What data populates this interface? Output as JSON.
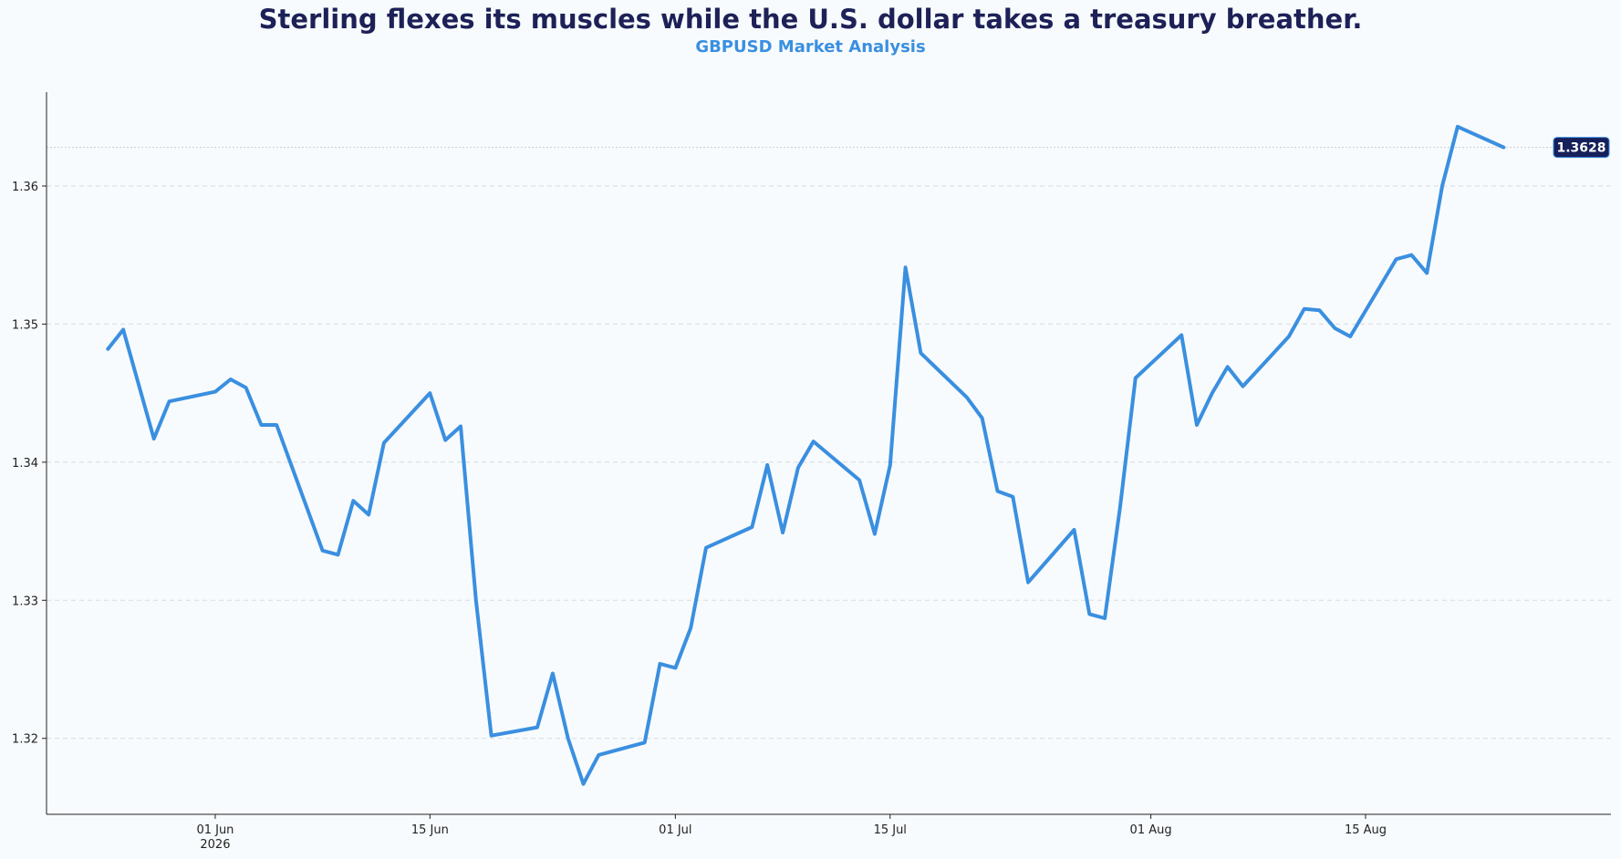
{
  "chart_data": {
    "type": "line",
    "title": "Sterling flexes its muscles while the U.S. dollar takes a treasury breather.",
    "subtitle": "GBPUSD Market Analysis",
    "xlabel": "",
    "ylabel": "",
    "ylim": [
      1.3145,
      1.3668
    ],
    "y_ticks": [
      1.32,
      1.33,
      1.34,
      1.35,
      1.36
    ],
    "y_tick_labels": [
      "1.32",
      "1.33",
      "1.34",
      "1.35",
      "1.36"
    ],
    "x_range": [
      "2026-05-21",
      "2026-08-31"
    ],
    "x_ticks": [
      {
        "date": "2026-06-01",
        "label": "01 Jun",
        "sublabel": "2026"
      },
      {
        "date": "2026-06-15",
        "label": "15 Jun",
        "sublabel": ""
      },
      {
        "date": "2026-07-01",
        "label": "01 Jul",
        "sublabel": ""
      },
      {
        "date": "2026-07-15",
        "label": "15 Jul",
        "sublabel": ""
      },
      {
        "date": "2026-08-01",
        "label": "01 Aug",
        "sublabel": ""
      },
      {
        "date": "2026-08-15",
        "label": "15 Aug",
        "sublabel": ""
      }
    ],
    "grid": "horizontal-dashed",
    "series": [
      {
        "color": "#3a8fe0",
        "x": [
          "2026-05-25",
          "2026-05-26",
          "2026-05-28",
          "2026-05-29",
          "2026-06-01",
          "2026-06-02",
          "2026-06-03",
          "2026-06-04",
          "2026-06-05",
          "2026-06-08",
          "2026-06-09",
          "2026-06-10",
          "2026-06-11",
          "2026-06-12",
          "2026-06-15",
          "2026-06-16",
          "2026-06-17",
          "2026-06-18",
          "2026-06-19",
          "2026-06-22",
          "2026-06-23",
          "2026-06-24",
          "2026-06-25",
          "2026-06-26",
          "2026-06-29",
          "2026-06-30",
          "2026-07-01",
          "2026-07-02",
          "2026-07-03",
          "2026-07-06",
          "2026-07-07",
          "2026-07-08",
          "2026-07-09",
          "2026-07-10",
          "2026-07-13",
          "2026-07-14",
          "2026-07-15",
          "2026-07-16",
          "2026-07-17",
          "2026-07-20",
          "2026-07-21",
          "2026-07-22",
          "2026-07-23",
          "2026-07-24",
          "2026-07-27",
          "2026-07-28",
          "2026-07-29",
          "2026-07-30",
          "2026-07-31",
          "2026-08-03",
          "2026-08-04",
          "2026-08-05",
          "2026-08-06",
          "2026-08-07",
          "2026-08-10",
          "2026-08-11",
          "2026-08-12",
          "2026-08-13",
          "2026-08-14",
          "2026-08-17",
          "2026-08-18",
          "2026-08-19",
          "2026-08-20",
          "2026-08-21",
          "2026-08-24"
        ],
        "values": [
          1.3482,
          1.3496,
          1.3417,
          1.3444,
          1.3451,
          1.346,
          1.3454,
          1.3427,
          1.3427,
          1.3336,
          1.3333,
          1.3372,
          1.3362,
          1.3414,
          1.345,
          1.3416,
          1.3426,
          1.33,
          1.3202,
          1.3208,
          1.3247,
          1.32,
          1.3167,
          1.3188,
          1.3197,
          1.3254,
          1.3251,
          1.328,
          1.3338,
          1.3353,
          1.3398,
          1.3349,
          1.3396,
          1.3415,
          1.3387,
          1.3348,
          1.3398,
          1.3541,
          1.3479,
          1.3447,
          1.3432,
          1.3379,
          1.3375,
          1.3313,
          1.3351,
          1.329,
          1.3287,
          1.3368,
          1.3461,
          1.3492,
          1.3427,
          1.345,
          1.3469,
          1.3455,
          1.3491,
          1.3511,
          1.351,
          1.3497,
          1.3491,
          1.3547,
          1.355,
          1.3537,
          1.36,
          1.3643,
          1.3628
        ]
      }
    ],
    "last_value": 1.3628,
    "last_value_label": "1.3628"
  }
}
